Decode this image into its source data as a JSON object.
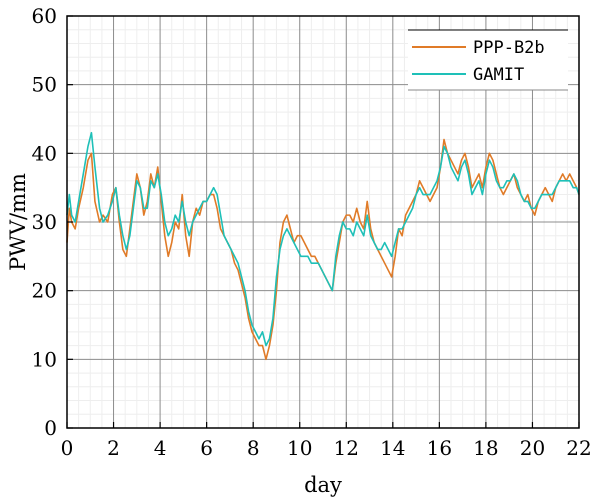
{
  "chart_data": {
    "type": "line",
    "xlabel": "day",
    "ylabel": "PWV/mm",
    "xlim": [
      0,
      22
    ],
    "ylim": [
      0,
      60
    ],
    "xticks": [
      0,
      2,
      4,
      6,
      8,
      10,
      12,
      14,
      16,
      18,
      20,
      22
    ],
    "yticks": [
      0,
      10,
      20,
      30,
      40,
      50,
      60
    ],
    "grid": true,
    "legend_position": "top-right",
    "series": [
      {
        "name": "PPP-B2b",
        "color": "#e07b28",
        "x": [
          0,
          0.1,
          0.2,
          0.35,
          0.5,
          0.7,
          0.9,
          1.05,
          1.2,
          1.4,
          1.55,
          1.75,
          1.95,
          2.1,
          2.25,
          2.4,
          2.55,
          2.7,
          2.85,
          3.0,
          3.15,
          3.3,
          3.45,
          3.6,
          3.75,
          3.9,
          4.05,
          4.2,
          4.35,
          4.5,
          4.65,
          4.8,
          4.95,
          5.1,
          5.25,
          5.4,
          5.55,
          5.7,
          5.85,
          6.0,
          6.15,
          6.3,
          6.45,
          6.6,
          6.75,
          6.9,
          7.05,
          7.2,
          7.35,
          7.5,
          7.65,
          7.8,
          7.95,
          8.1,
          8.25,
          8.4,
          8.55,
          8.7,
          8.85,
          9.0,
          9.15,
          9.3,
          9.45,
          9.6,
          9.75,
          9.9,
          10.05,
          10.2,
          10.35,
          10.5,
          10.65,
          10.8,
          10.95,
          11.1,
          11.25,
          11.4,
          11.55,
          11.7,
          11.85,
          12.0,
          12.15,
          12.3,
          12.45,
          12.6,
          12.75,
          12.9,
          13.05,
          13.2,
          13.35,
          13.5,
          13.65,
          13.8,
          13.95,
          14.1,
          14.25,
          14.4,
          14.55,
          14.7,
          14.85,
          15.0,
          15.15,
          15.3,
          15.45,
          15.6,
          15.75,
          15.9,
          16.05,
          16.2,
          16.35,
          16.5,
          16.65,
          16.8,
          16.95,
          17.1,
          17.25,
          17.4,
          17.55,
          17.7,
          17.85,
          18.0,
          18.15,
          18.3,
          18.45,
          18.6,
          18.75,
          18.9,
          19.05,
          19.2,
          19.35,
          19.5,
          19.65,
          19.8,
          19.95,
          20.1,
          20.25,
          20.4,
          20.55,
          20.7,
          20.85,
          21.0,
          21.15,
          21.3,
          21.45,
          21.6,
          21.75,
          21.9,
          22.0
        ],
        "y": [
          27,
          32,
          30,
          29,
          32,
          35,
          39,
          40,
          33,
          30,
          31,
          30,
          34,
          35,
          30,
          26,
          25,
          29,
          33,
          37,
          35,
          31,
          33,
          37,
          35,
          38,
          33,
          28,
          25,
          27,
          30,
          29,
          34,
          28,
          25,
          30,
          32,
          31,
          33,
          33,
          34,
          34,
          32,
          29,
          28,
          27,
          26,
          24,
          23,
          21,
          19,
          16,
          14,
          13,
          12,
          12,
          10,
          12,
          15,
          20,
          27,
          30,
          31,
          29,
          27,
          28,
          28,
          27,
          26,
          25,
          25,
          24,
          23,
          22,
          21,
          20,
          24,
          27,
          30,
          31,
          31,
          30,
          32,
          30,
          29,
          33,
          29,
          27,
          26,
          25,
          24,
          23,
          22,
          25,
          29,
          28,
          31,
          32,
          33,
          34,
          36,
          35,
          34,
          33,
          34,
          35,
          38,
          42,
          40,
          39,
          38,
          37,
          39,
          40,
          38,
          35,
          36,
          37,
          35,
          38,
          40,
          39,
          37,
          35,
          34,
          35,
          36,
          37,
          35,
          34,
          33,
          34,
          32,
          31,
          33,
          34,
          35,
          34,
          33,
          35,
          36,
          37,
          36,
          37,
          36,
          35,
          34
        ]
      },
      {
        "name": "GAMIT",
        "color": "#1ec0b8",
        "x": [
          0,
          0.1,
          0.2,
          0.35,
          0.5,
          0.7,
          0.9,
          1.05,
          1.2,
          1.4,
          1.55,
          1.75,
          1.95,
          2.1,
          2.25,
          2.4,
          2.55,
          2.7,
          2.85,
          3.0,
          3.15,
          3.3,
          3.45,
          3.6,
          3.75,
          3.9,
          4.05,
          4.2,
          4.35,
          4.5,
          4.65,
          4.8,
          4.95,
          5.1,
          5.25,
          5.4,
          5.55,
          5.7,
          5.85,
          6.0,
          6.15,
          6.3,
          6.45,
          6.6,
          6.75,
          6.9,
          7.05,
          7.2,
          7.35,
          7.5,
          7.65,
          7.8,
          7.95,
          8.1,
          8.25,
          8.4,
          8.55,
          8.7,
          8.85,
          9.0,
          9.15,
          9.3,
          9.45,
          9.6,
          9.75,
          9.9,
          10.05,
          10.2,
          10.35,
          10.5,
          10.65,
          10.8,
          10.95,
          11.1,
          11.25,
          11.4,
          11.55,
          11.7,
          11.85,
          12.0,
          12.15,
          12.3,
          12.45,
          12.6,
          12.75,
          12.9,
          13.05,
          13.2,
          13.35,
          13.5,
          13.65,
          13.8,
          13.95,
          14.1,
          14.25,
          14.4,
          14.55,
          14.7,
          14.85,
          15.0,
          15.15,
          15.3,
          15.45,
          15.6,
          15.75,
          15.9,
          16.05,
          16.2,
          16.35,
          16.5,
          16.65,
          16.8,
          16.95,
          17.1,
          17.25,
          17.4,
          17.55,
          17.7,
          17.85,
          18.0,
          18.15,
          18.3,
          18.45,
          18.6,
          18.75,
          18.9,
          19.05,
          19.2,
          19.35,
          19.5,
          19.65,
          19.8,
          19.95,
          20.1,
          20.25,
          20.4,
          20.55,
          20.7,
          20.85,
          21.0,
          21.15,
          21.3,
          21.45,
          21.6,
          21.75,
          21.9,
          22.0
        ],
        "y": [
          31,
          34,
          31,
          30,
          33,
          37,
          41,
          43,
          38,
          32,
          30,
          31,
          33,
          35,
          31,
          28,
          26,
          28,
          32,
          36,
          35,
          32,
          32,
          36,
          35,
          37,
          34,
          30,
          28,
          29,
          31,
          30,
          33,
          30,
          28,
          30,
          31,
          32,
          33,
          33,
          34,
          35,
          34,
          31,
          28,
          27,
          26,
          25,
          24,
          22,
          20,
          17,
          15,
          14,
          13,
          14,
          12,
          13,
          16,
          22,
          26,
          28,
          29,
          28,
          27,
          26,
          25,
          25,
          25,
          24,
          24,
          24,
          23,
          22,
          21,
          20,
          25,
          28,
          30,
          29,
          29,
          28,
          30,
          29,
          28,
          31,
          28,
          27,
          26,
          26,
          27,
          26,
          25,
          27,
          29,
          29,
          30,
          31,
          32,
          34,
          35,
          34,
          34,
          34,
          35,
          36,
          38,
          41,
          40,
          38,
          37,
          36,
          38,
          39,
          37,
          34,
          35,
          36,
          34,
          37,
          39,
          38,
          36,
          35,
          35,
          36,
          36,
          37,
          36,
          34,
          33,
          33,
          32,
          32,
          33,
          34,
          34,
          34,
          34,
          35,
          36,
          36,
          36,
          36,
          35,
          35,
          34
        ]
      }
    ]
  }
}
